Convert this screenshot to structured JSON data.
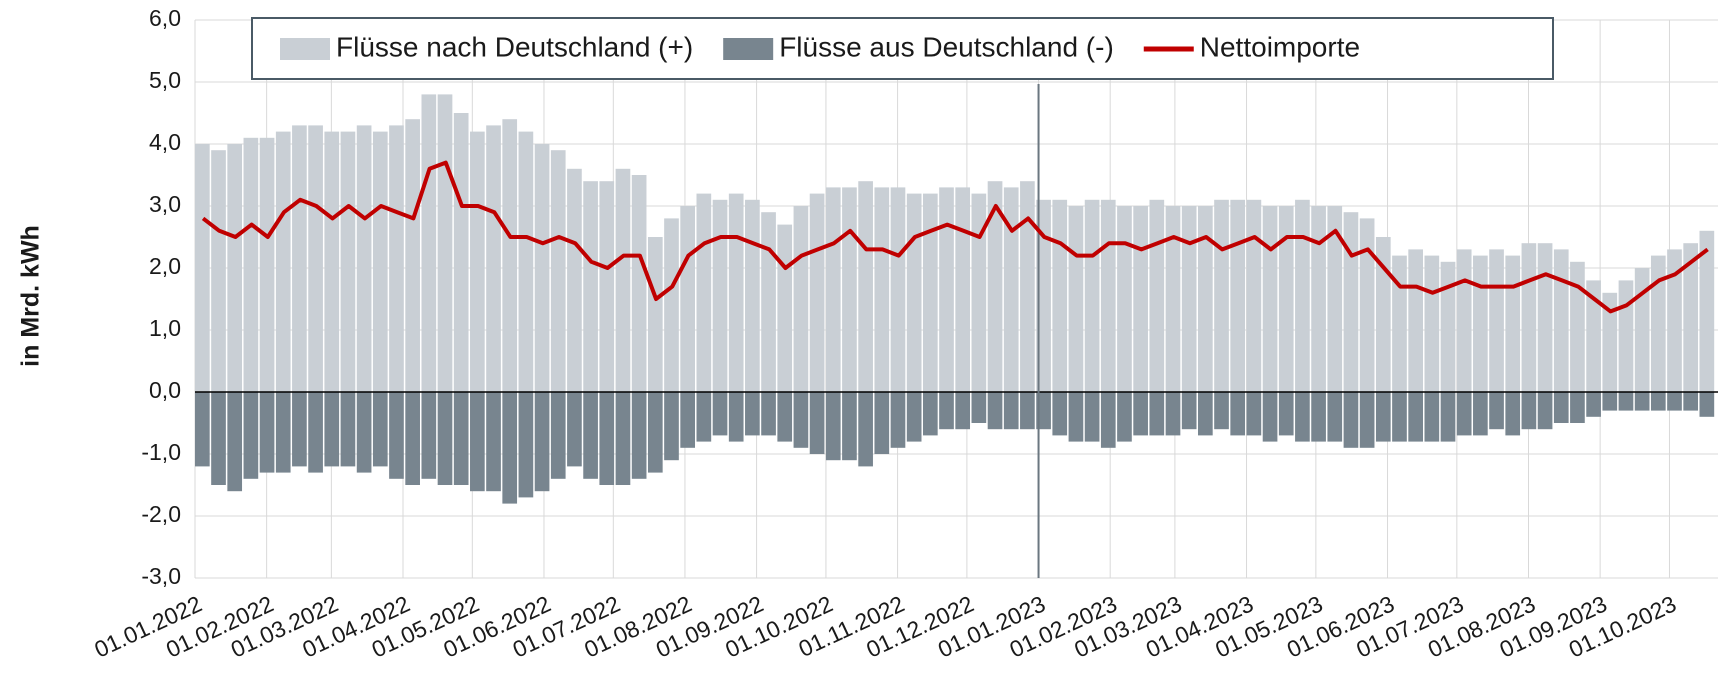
{
  "chart_data": {
    "type": "bar-line",
    "y_label": "in Mrd. kWh",
    "x": [
      "01.01.2022",
      "08.01.2022",
      "15.01.2022",
      "22.01.2022",
      "29.01.2022",
      "05.02.2022",
      "12.02.2022",
      "19.02.2022",
      "26.02.2022",
      "05.03.2022",
      "12.03.2022",
      "19.03.2022",
      "26.03.2022",
      "02.04.2022",
      "09.04.2022",
      "16.04.2022",
      "23.04.2022",
      "30.04.2022",
      "07.05.2022",
      "14.05.2022",
      "21.05.2022",
      "28.05.2022",
      "04.06.2022",
      "11.06.2022",
      "18.06.2022",
      "25.06.2022",
      "02.07.2022",
      "09.07.2022",
      "16.07.2022",
      "23.07.2022",
      "30.07.2022",
      "06.08.2022",
      "13.08.2022",
      "20.08.2022",
      "27.08.2022",
      "03.09.2022",
      "10.09.2022",
      "17.09.2022",
      "24.09.2022",
      "01.10.2022",
      "08.10.2022",
      "15.10.2022",
      "22.10.2022",
      "29.10.2022",
      "05.11.2022",
      "12.11.2022",
      "19.11.2022",
      "26.11.2022",
      "03.12.2022",
      "10.12.2022",
      "17.12.2022",
      "24.12.2022",
      "31.12.2022",
      "07.01.2023",
      "14.01.2023",
      "21.01.2023",
      "28.01.2023",
      "04.02.2023",
      "11.02.2023",
      "18.02.2023",
      "25.02.2023",
      "04.03.2023",
      "11.03.2023",
      "18.03.2023",
      "25.03.2023",
      "01.04.2023",
      "08.04.2023",
      "15.04.2023",
      "22.04.2023",
      "29.04.2023",
      "06.05.2023",
      "13.05.2023",
      "20.05.2023",
      "27.05.2023",
      "03.06.2023",
      "10.06.2023",
      "17.06.2023",
      "24.06.2023",
      "01.07.2023",
      "08.07.2023",
      "15.07.2023",
      "22.07.2023",
      "29.07.2023",
      "05.08.2023",
      "12.08.2023",
      "19.08.2023",
      "26.08.2023",
      "02.09.2023",
      "09.09.2023",
      "16.09.2023",
      "23.09.2023",
      "30.09.2023",
      "07.10.2023",
      "14.10.2023"
    ],
    "series": [
      {
        "name": "Flüsse nach Deutschland (+)",
        "kind": "bar",
        "color": "#c9cfd5",
        "values": [
          4.0,
          3.9,
          4.0,
          4.1,
          4.1,
          4.2,
          4.3,
          4.3,
          4.2,
          4.2,
          4.3,
          4.2,
          4.3,
          4.4,
          4.8,
          4.8,
          4.5,
          4.2,
          4.3,
          4.4,
          4.2,
          4.0,
          3.9,
          3.6,
          3.4,
          3.4,
          3.6,
          3.5,
          2.5,
          2.8,
          3.0,
          3.2,
          3.1,
          3.2,
          3.1,
          2.9,
          2.7,
          3.0,
          3.2,
          3.3,
          3.3,
          3.4,
          3.3,
          3.3,
          3.2,
          3.2,
          3.3,
          3.3,
          3.2,
          3.4,
          3.3,
          3.4,
          3.1,
          3.1,
          3.0,
          3.1,
          3.1,
          3.0,
          3.0,
          3.1,
          3.0,
          3.0,
          3.0,
          3.1,
          3.1,
          3.1,
          3.0,
          3.0,
          3.1,
          3.0,
          3.0,
          2.9,
          2.8,
          2.5,
          2.2,
          2.3,
          2.2,
          2.1,
          2.3,
          2.2,
          2.3,
          2.2,
          2.4,
          2.4,
          2.3,
          2.1,
          1.8,
          1.6,
          1.8,
          2.0,
          2.2,
          2.3,
          2.4,
          2.6
        ]
      },
      {
        "name": "Flüsse aus Deutschland (-)",
        "kind": "bar",
        "color": "#78858f",
        "values": [
          -1.2,
          -1.5,
          -1.6,
          -1.4,
          -1.3,
          -1.3,
          -1.2,
          -1.3,
          -1.2,
          -1.2,
          -1.3,
          -1.2,
          -1.4,
          -1.5,
          -1.4,
          -1.5,
          -1.5,
          -1.6,
          -1.6,
          -1.8,
          -1.7,
          -1.6,
          -1.4,
          -1.2,
          -1.4,
          -1.5,
          -1.5,
          -1.4,
          -1.3,
          -1.1,
          -0.9,
          -0.8,
          -0.7,
          -0.8,
          -0.7,
          -0.7,
          -0.8,
          -0.9,
          -1.0,
          -1.1,
          -1.1,
          -1.2,
          -1.0,
          -0.9,
          -0.8,
          -0.7,
          -0.6,
          -0.6,
          -0.5,
          -0.6,
          -0.6,
          -0.6,
          -0.6,
          -0.7,
          -0.8,
          -0.8,
          -0.9,
          -0.8,
          -0.7,
          -0.7,
          -0.7,
          -0.6,
          -0.7,
          -0.6,
          -0.7,
          -0.7,
          -0.8,
          -0.7,
          -0.8,
          -0.8,
          -0.8,
          -0.9,
          -0.9,
          -0.8,
          -0.8,
          -0.8,
          -0.8,
          -0.8,
          -0.7,
          -0.7,
          -0.6,
          -0.7,
          -0.6,
          -0.6,
          -0.5,
          -0.5,
          -0.4,
          -0.3,
          -0.3,
          -0.3,
          -0.3,
          -0.3,
          -0.3,
          -0.4
        ]
      },
      {
        "name": "Nettoimporte",
        "kind": "line",
        "color": "#c00000",
        "values": [
          2.8,
          2.6,
          2.5,
          2.7,
          2.5,
          2.9,
          3.1,
          3.0,
          2.8,
          3.0,
          2.8,
          3.0,
          2.9,
          2.8,
          3.6,
          3.7,
          3.0,
          3.0,
          2.9,
          2.5,
          2.5,
          2.4,
          2.5,
          2.4,
          2.1,
          2.0,
          2.2,
          2.2,
          1.5,
          1.7,
          2.2,
          2.4,
          2.5,
          2.5,
          2.4,
          2.3,
          2.0,
          2.2,
          2.3,
          2.4,
          2.6,
          2.3,
          2.3,
          2.2,
          2.5,
          2.6,
          2.7,
          2.6,
          2.5,
          3.0,
          2.6,
          2.8,
          2.5,
          2.4,
          2.2,
          2.2,
          2.4,
          2.4,
          2.3,
          2.4,
          2.5,
          2.4,
          2.5,
          2.3,
          2.4,
          2.5,
          2.3,
          2.5,
          2.5,
          2.4,
          2.6,
          2.2,
          2.3,
          2.0,
          1.7,
          1.7,
          1.6,
          1.7,
          1.8,
          1.7,
          1.7,
          1.7,
          1.8,
          1.9,
          1.8,
          1.7,
          1.5,
          1.3,
          1.4,
          1.6,
          1.8,
          1.9,
          2.1,
          2.3
        ]
      }
    ],
    "xlim": [
      "01.01.2022",
      "22.10.2023"
    ],
    "xticks": [
      "01.01.2022",
      "01.02.2022",
      "01.03.2022",
      "01.04.2022",
      "01.05.2022",
      "01.06.2022",
      "01.07.2022",
      "01.08.2022",
      "01.09.2022",
      "01.10.2022",
      "01.11.2022",
      "01.12.2022",
      "01.01.2023",
      "01.02.2023",
      "01.03.2023",
      "01.04.2023",
      "01.05.2023",
      "01.06.2023",
      "01.07.2023",
      "01.08.2023",
      "01.09.2023",
      "01.10.2023"
    ],
    "ylim": [
      -3,
      6
    ],
    "yticks": [
      {
        "value": -3,
        "label": "-3,0"
      },
      {
        "value": -2,
        "label": "-2,0"
      },
      {
        "value": -1,
        "label": "-1,0"
      },
      {
        "value": 0,
        "label": "0,0"
      },
      {
        "value": 1,
        "label": "1,0"
      },
      {
        "value": 2,
        "label": "2,0"
      },
      {
        "value": 3,
        "label": "3,0"
      },
      {
        "value": 4,
        "label": "4,0"
      },
      {
        "value": 5,
        "label": "5,0"
      },
      {
        "value": 6,
        "label": "6,0"
      }
    ],
    "vline": "01.01.2023",
    "grid": true,
    "legend": "top"
  }
}
